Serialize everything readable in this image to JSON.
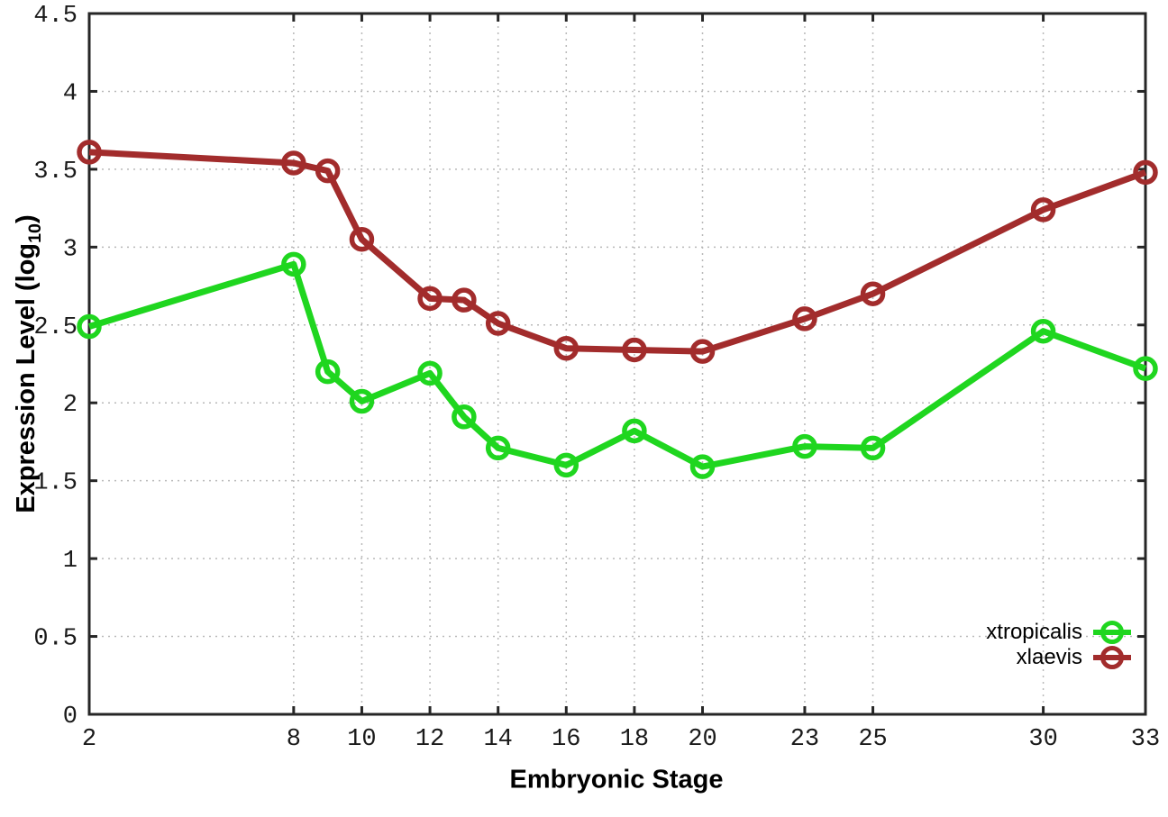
{
  "chart_data": {
    "type": "line",
    "title": "",
    "xlabel": "Embryonic Stage",
    "ylabel": "Expression Level (log10)",
    "ylabel_parts": {
      "main": "Expression Level (log",
      "sub": "10",
      "end": ")"
    },
    "x": [
      2,
      8,
      9,
      10,
      12,
      13,
      14,
      16,
      18,
      20,
      23,
      25,
      30,
      33
    ],
    "series": [
      {
        "name": "xtropicalis",
        "color": "#1fd61f",
        "marker": "open-circle",
        "values": [
          2.49,
          2.89,
          2.2,
          2.01,
          2.19,
          1.91,
          1.71,
          1.6,
          1.82,
          1.59,
          1.72,
          1.71,
          2.46,
          2.22
        ]
      },
      {
        "name": "xlaevis",
        "color": "#a22c2c",
        "marker": "open-circle",
        "values": [
          3.61,
          3.54,
          3.49,
          3.05,
          2.67,
          2.66,
          2.51,
          2.35,
          2.34,
          2.33,
          2.54,
          2.7,
          3.24,
          3.48
        ]
      }
    ],
    "xlim": [
      2,
      33
    ],
    "ylim": [
      0,
      4.5
    ],
    "xticks": [
      2,
      8,
      10,
      12,
      14,
      16,
      18,
      20,
      23,
      25,
      30,
      33
    ],
    "xtick_labels": [
      "2",
      "8",
      "10",
      "12",
      "14",
      "16",
      "18",
      "20",
      "23",
      "25",
      "30",
      "33"
    ],
    "yticks": [
      0,
      0.5,
      1,
      1.5,
      2,
      2.5,
      3,
      3.5,
      4,
      4.5
    ],
    "ytick_labels": [
      "0",
      "0.5",
      "1",
      "1.5",
      "2",
      "2.5",
      "3",
      "3.5",
      "4",
      "4.5"
    ],
    "grid": true,
    "legend_position": "bottom-right"
  },
  "colors": {
    "background": "#ffffff",
    "plot_border": "#262626",
    "grid_line": "#b9b9b9",
    "text": "#000000"
  }
}
